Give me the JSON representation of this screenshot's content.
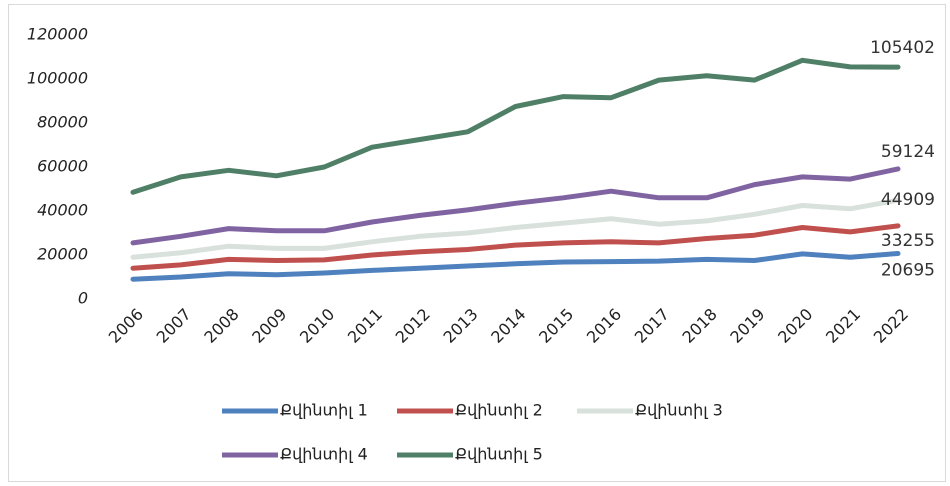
{
  "chart_data": {
    "type": "line",
    "categories": [
      "2006",
      "2007",
      "2008",
      "2009",
      "2010",
      "2011",
      "2012",
      "2013",
      "2014",
      "2015",
      "2016",
      "2017",
      "2018",
      "2019",
      "2020",
      "2021",
      "2022"
    ],
    "series": [
      {
        "name": "Քվինտիլ 1",
        "color": "#4e81bd",
        "values": [
          9000,
          10000,
          11500,
          11000,
          11800,
          13000,
          14000,
          15000,
          16000,
          16800,
          17000,
          17200,
          18000,
          17500,
          20500,
          19000,
          20695
        ]
      },
      {
        "name": "Քվինտիլ 2",
        "color": "#c0504d",
        "values": [
          14000,
          15500,
          18000,
          17500,
          17800,
          20000,
          21500,
          22500,
          24500,
          25500,
          26000,
          25500,
          27500,
          29000,
          32500,
          30500,
          33255
        ]
      },
      {
        "name": "Քվինտիլ 3",
        "color": "#d9e1dc",
        "values": [
          19000,
          21000,
          24000,
          23000,
          23000,
          26000,
          28500,
          30000,
          32500,
          34500,
          36500,
          34000,
          35500,
          38500,
          42500,
          41000,
          44909
        ]
      },
      {
        "name": "Քվինտիլ 4",
        "color": "#8064a2",
        "values": [
          25500,
          28500,
          32000,
          31000,
          31000,
          35000,
          38000,
          40500,
          43500,
          46000,
          49000,
          46000,
          46000,
          52000,
          55500,
          54500,
          59124
        ]
      },
      {
        "name": "Քվինտիլ 5",
        "color": "#4f7f66",
        "values": [
          48500,
          55500,
          58500,
          56000,
          60000,
          69000,
          72500,
          76000,
          87500,
          92000,
          91500,
          99500,
          101500,
          99500,
          108500,
          105500,
          105402
        ]
      }
    ],
    "ylim": [
      0,
      120000
    ],
    "yticks": [
      0,
      20000,
      40000,
      60000,
      80000,
      100000,
      120000
    ],
    "grid": false
  }
}
